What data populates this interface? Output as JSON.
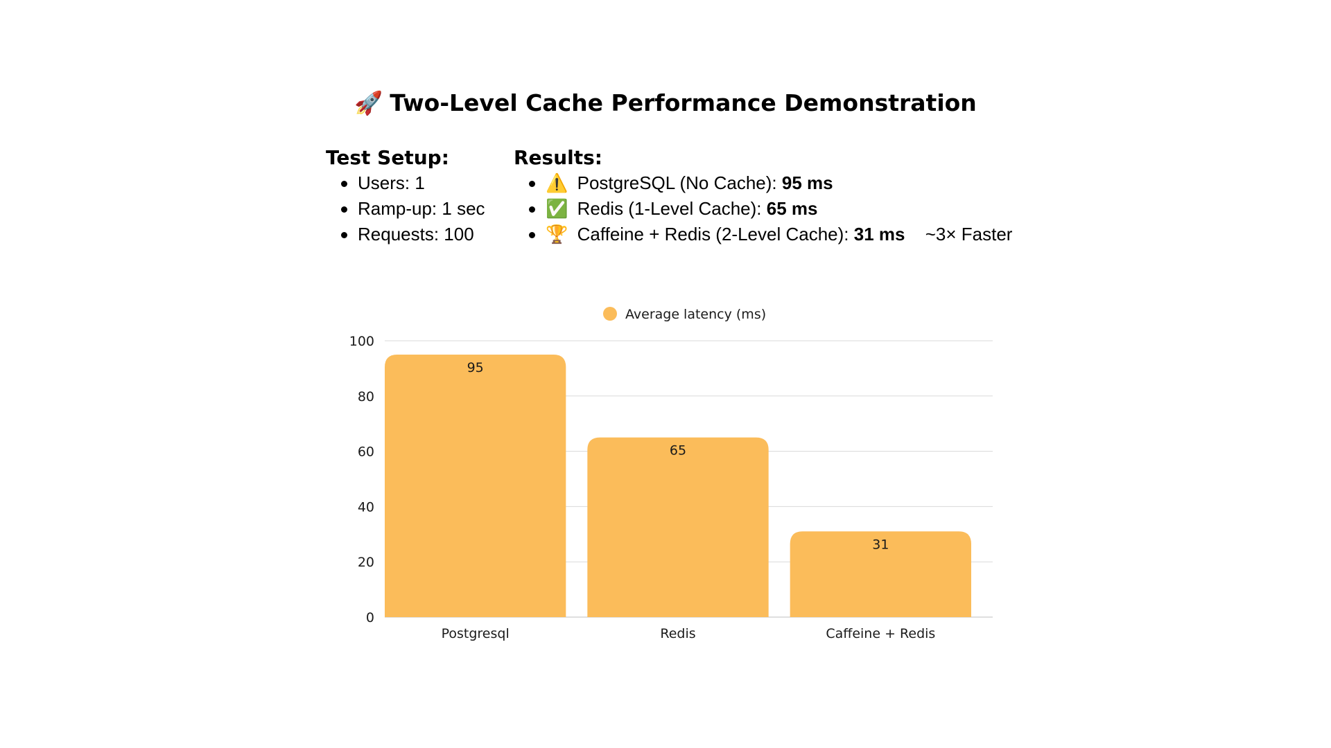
{
  "title": {
    "emoji": "🚀",
    "text": "Two-Level Cache Performance Demonstration"
  },
  "setup": {
    "heading": "Test Setup:",
    "items": [
      "Users: 1",
      "Ramp-up: 1 sec",
      "Requests: 100"
    ]
  },
  "results": {
    "heading": "Results:",
    "items": [
      {
        "emoji": "⚠️",
        "label": "PostgreSQL (No Cache):",
        "value": "95 ms",
        "note": ""
      },
      {
        "emoji": "✅",
        "label": "Redis (1-Level Cache):",
        "value": "65 ms",
        "note": ""
      },
      {
        "emoji": "🏆",
        "label": "Caffeine + Redis (2-Level Cache):",
        "value": "31 ms",
        "note": "~3× Faster"
      }
    ]
  },
  "colors": {
    "bar": "#fbbc5a",
    "gridline": "#d9d9d9",
    "axis_text": "#1a1a1a"
  },
  "chart_data": {
    "type": "bar",
    "categories": [
      "Postgresql",
      "Redis",
      "Caffeine + Redis"
    ],
    "series": [
      {
        "name": "Average latency (ms)",
        "values": [
          95,
          65,
          31
        ]
      }
    ],
    "data_labels": [
      "95",
      "65",
      "31"
    ],
    "yticks": [
      0,
      20,
      40,
      60,
      80,
      100
    ],
    "ylim": [
      0,
      100
    ],
    "legend_position": "top-center",
    "grid": true
  }
}
